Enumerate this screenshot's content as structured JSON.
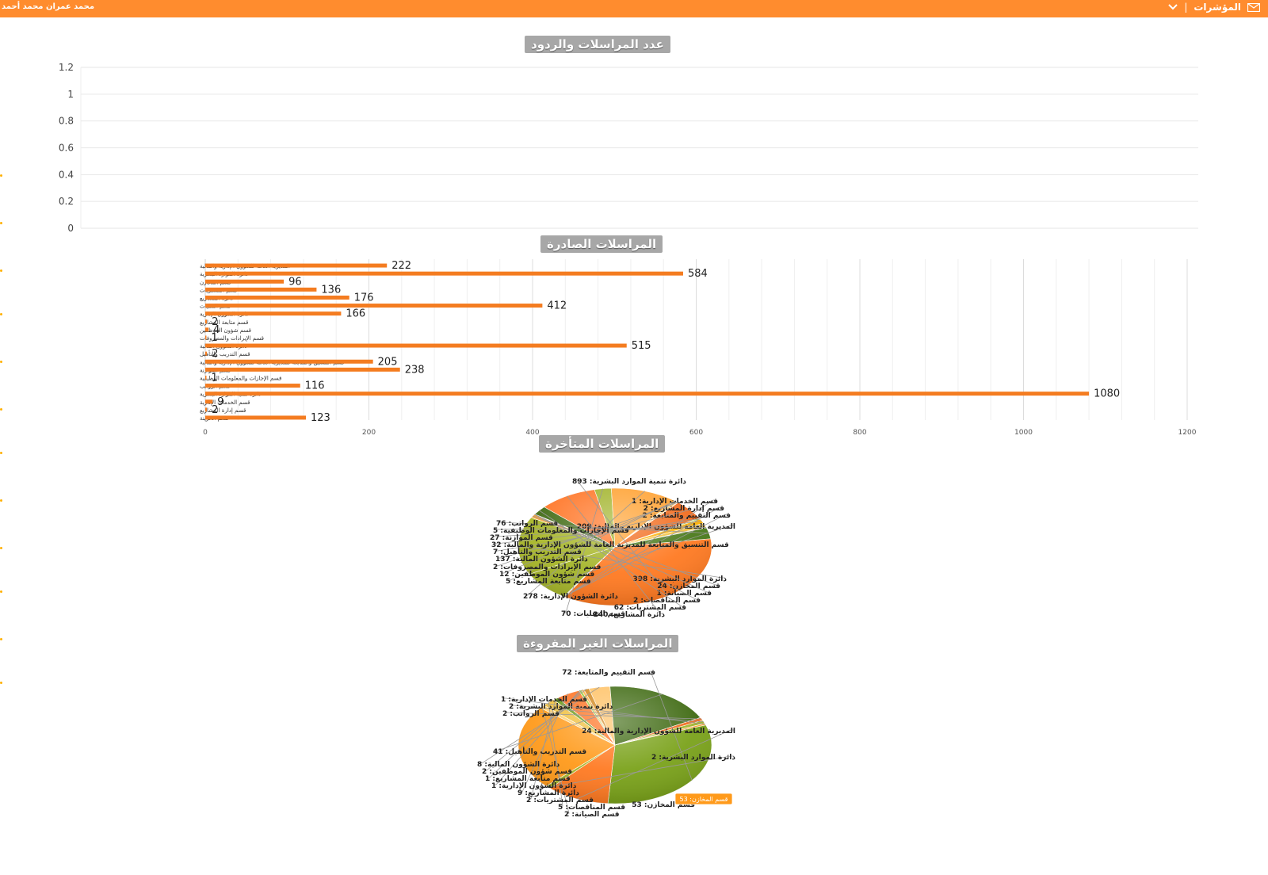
{
  "header": {
    "user_name": "محمد عمران محمد أحمد",
    "menu_label": "المؤشرات",
    "separator": "|"
  },
  "chart_data": [
    {
      "type": "line",
      "title": "عدد المراسلات والردود",
      "ylim": [
        0,
        1.2
      ],
      "y_ticks": [
        "1.2",
        "1",
        "0.8",
        "0.6",
        "0.4",
        "0.2",
        "0"
      ],
      "grid": true,
      "series": []
    },
    {
      "type": "bar",
      "orientation": "horizontal",
      "title": "المراسلات الصادرة",
      "xlim": [
        0,
        1200
      ],
      "x_ticks": [
        "0",
        "200",
        "400",
        "600",
        "800",
        "1000",
        "1200"
      ],
      "grid": true,
      "color": "#f47c20",
      "categories": [
        "المديرية العامة للشؤون الإدارية والمالية",
        "دائرة الموارد البشرية",
        "قسم المخازن",
        "قسم المشتريات",
        "دائرة المشاريع",
        "قسم النقليات",
        "دائرة الشؤون الإدارية",
        "قسم متابعة المشاريع",
        "قسم شؤون الموظفين",
        "قسم الإيرادات والمصروفات",
        "دائرة الشؤون المالية",
        "قسم التدريب والتأهيل",
        "قسم التنسيق والمتابعة للمديرية العامة للشؤون الإدارية والمالية",
        "قسم الموازنة",
        "قسم الإجازات والمعلومات الوظيفية",
        "قسم الرواتب",
        "دائرة تنمية الموارد البشرية",
        "قسم الخدمات الإدارية",
        "قسم إدارة المشاريع",
        "قسم الخزينة"
      ],
      "values": [
        222,
        584,
        96,
        136,
        176,
        412,
        166,
        2,
        4,
        1,
        515,
        2,
        205,
        238,
        1,
        116,
        1080,
        9,
        2,
        123
      ],
      "value_labels": [
        "222",
        "584",
        "96",
        "136",
        "176",
        "412",
        "166",
        "2",
        "4",
        "1",
        "515",
        "2",
        "205",
        "238",
        "1",
        "116",
        "1080",
        "9",
        "2",
        "123"
      ]
    },
    {
      "type": "pie",
      "title": "المراسلات المتأخرة",
      "slices": [
        {
          "label": "دائرة تنمية الموارد البشرية",
          "value": 893,
          "text": "دائرة تنمية الموارد البشرية: 893",
          "color": "#ff7a22"
        },
        {
          "label": "قسم الخدمات الإدارية",
          "value": 1,
          "text": "قسم الخدمات الإدارية: 1",
          "color": "#6a9a1a"
        },
        {
          "label": "قسم إدارة المشاريع",
          "value": 2,
          "text": "قسم إدارة المشاريع: 2",
          "color": "#ffb347"
        },
        {
          "label": "قسم التقييم والمتابعة",
          "value": 2,
          "text": "قسم التقييم والمتابعة: 2",
          "color": "#f08d2a"
        },
        {
          "label": "المديرية العامة للشؤون الإدارية والمالية",
          "value": 209,
          "text": "المديرية العامة للشؤون الإدارية والمالية: 209",
          "color": "#a5b52a"
        },
        {
          "label": "دائرة الموارد البشرية",
          "value": 398,
          "text": "دائرة الموارد البشرية: 398",
          "color": "#a8b728"
        },
        {
          "label": "قسم المخازن",
          "value": 24,
          "text": "قسم المخازن: 24",
          "color": "#f7a034"
        },
        {
          "label": "قسم الصيانة",
          "value": 1,
          "text": "قسم الصيانة: 1",
          "color": "#ffcf70"
        },
        {
          "label": "قسم المناقصات",
          "value": 2,
          "text": "قسم المناقصات: 2",
          "color": "#d1861c"
        },
        {
          "label": "قسم المشتريات",
          "value": 62,
          "text": "قسم المشتريات: 62",
          "color": "#3f6a12"
        },
        {
          "label": "دائرة المشاريع",
          "value": 240,
          "text": "دائرة المشاريع: 240",
          "color": "#ff7424"
        },
        {
          "label": "قسم النقليات",
          "value": 70,
          "text": "قسم النقليات: 70",
          "color": "#a1b32a"
        },
        {
          "label": "دائرة الشؤون الإدارية",
          "value": 278,
          "text": "دائرة الشؤون الإدارية: 278",
          "color": "#ffa02e"
        },
        {
          "label": "قسم متابعة المشاريع",
          "value": 5,
          "text": "قسم متابعة المشاريع: 5",
          "color": "#6e9e24"
        },
        {
          "label": "قسم شؤون الموظفين",
          "value": 12,
          "text": "قسم شؤون الموظفين: 12",
          "color": "#ffc266"
        },
        {
          "label": "قسم الإيرادات والمصروفات",
          "value": 2,
          "text": "قسم الإيرادات والمصروفات: 2",
          "color": "#b8860b"
        },
        {
          "label": "دائرة الشؤون المالية",
          "value": 137,
          "text": "دائرة الشؤون المالية: 137",
          "color": "#f26a1b"
        },
        {
          "label": "قسم التدريب والتأهيل",
          "value": 7,
          "text": "قسم التدريب والتأهيل: 7",
          "color": "#9acd32"
        },
        {
          "label": "قسم التنسيق والمتابعة للمديرية العامة للشؤون الإدارية والمالية",
          "value": 32,
          "text": "قسم التنسيق والمتابعة للمديرية العامة للشؤون الإدارية والمالية: 32",
          "color": "#ffb000"
        },
        {
          "label": "قسم الموازنة",
          "value": 27,
          "text": "قسم الموازنة: 27",
          "color": "#f0c040"
        },
        {
          "label": "قسم الإجازات والمعلومات الوظيفية",
          "value": 5,
          "text": "قسم الإجازات والمعلومات الوظيفية: 5",
          "color": "#c0a030"
        },
        {
          "label": "قسم الرواتب",
          "value": 76,
          "text": "قسم الرواتب: 76",
          "color": "#4a7a1a"
        }
      ]
    },
    {
      "type": "pie",
      "title": "المراسلات الغير المقروءة",
      "highlight_label": "قسم المخازن: 53",
      "slices": [
        {
          "label": "قسم التقييم والمتابعة",
          "value": 72,
          "text": "قسم التقييم والمتابعة: 72",
          "color": "#7aa21a"
        },
        {
          "label": "المديرية العامة للشؤون الإدارية والمالية",
          "value": 24,
          "text": "المديرية العامة للشؤون الإدارية والمالية: 24",
          "color": "#ff7a22"
        },
        {
          "label": "دائرة الموارد البشرية",
          "value": 2,
          "text": "دائرة الموارد البشرية: 2",
          "color": "#a5b52a"
        },
        {
          "label": "قسم المخازن",
          "value": 53,
          "text": "قسم المخازن: 53",
          "color": "#ff9a1a"
        },
        {
          "label": "قسم الصيانة",
          "value": 2,
          "text": "قسم الصيانة: 2",
          "color": "#ffd070"
        },
        {
          "label": "قسم المناقصات",
          "value": 5,
          "text": "قسم المناقصات: 5",
          "color": "#f0c040"
        },
        {
          "label": "قسم المشتريات",
          "value": 2,
          "text": "قسم المشتريات: 2",
          "color": "#6a9a1a"
        },
        {
          "label": "دائرة المشاريع",
          "value": 9,
          "text": "دائرة المشاريع: 9",
          "color": "#ff7424"
        },
        {
          "label": "دائرة الشؤون الإدارية",
          "value": 1,
          "text": "دائرة الشؤون الإدارية: 1",
          "color": "#9acd32"
        },
        {
          "label": "قسم متابعة المشاريع",
          "value": 1,
          "text": "قسم متابعة المشاريع: 1",
          "color": "#ffb347"
        },
        {
          "label": "قسم شؤون الموظفين",
          "value": 2,
          "text": "قسم شؤون الموظفين: 2",
          "color": "#d1861c"
        },
        {
          "label": "دائرة الشؤون المالية",
          "value": 8,
          "text": "دائرة الشؤون المالية: 8",
          "color": "#ffc266"
        },
        {
          "label": "قسم التدريب والتأهيل",
          "value": 41,
          "text": "قسم التدريب والتأهيل: 41",
          "color": "#3f6a12"
        },
        {
          "label": "قسم الرواتب",
          "value": 2,
          "text": "قسم الرواتب: 2",
          "color": "#f26a1b"
        },
        {
          "label": "دائرة تنمية الموارد البشرية",
          "value": 2,
          "text": "دائرة تنمية الموارد البشرية: 2",
          "color": "#a1b32a"
        },
        {
          "label": "قسم الخدمات الإدارية",
          "value": 1,
          "text": "قسم الخدمات الإدارية: 1",
          "color": "#ffa02e"
        }
      ]
    }
  ]
}
